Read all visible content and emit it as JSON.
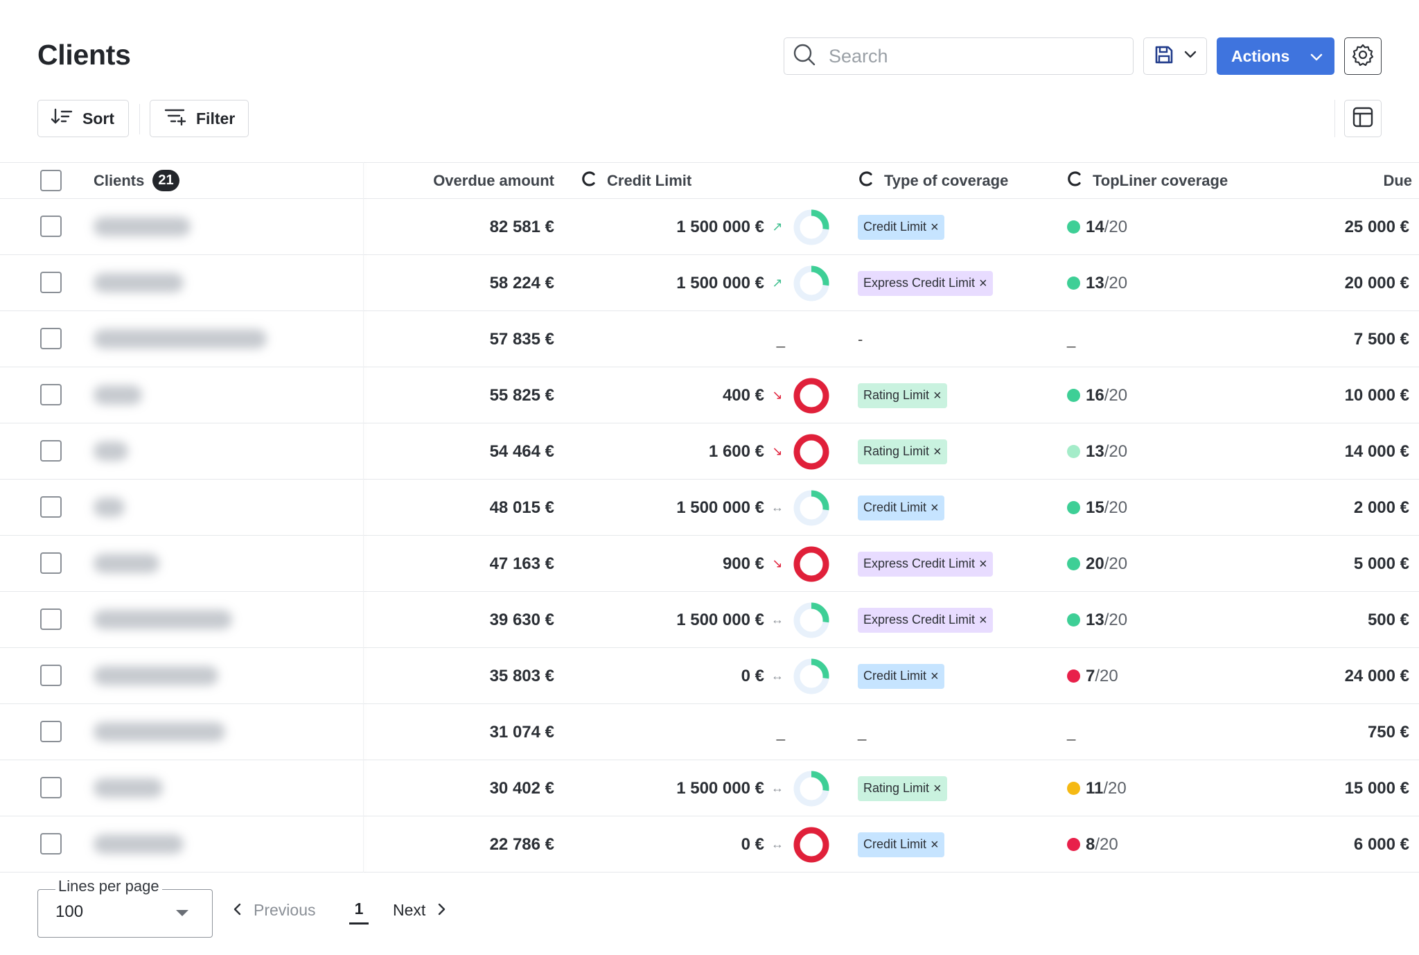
{
  "header": {
    "title": "Clients",
    "search_placeholder": "Search",
    "actions_label": "Actions"
  },
  "toolbar": {
    "sort_label": "Sort",
    "filter_label": "Filter"
  },
  "table": {
    "columns": {
      "clients": "Clients",
      "clients_count": "21",
      "overdue": "Overdue amount",
      "credit_limit": "Credit Limit",
      "type": "Type of coverage",
      "topliner": "TopLiner coverage",
      "due": "Due"
    },
    "rows": [
      {
        "overdue": "82 581 €",
        "credit": "1 500 000 €",
        "trend": "up",
        "ratio": 0.27,
        "type": "Credit Limit",
        "type_kind": "credit-limit",
        "score": "14",
        "score_color": "#3ecf96",
        "due": "25 000 €"
      },
      {
        "overdue": "58 224 €",
        "credit": "1 500 000 €",
        "trend": "up",
        "ratio": 0.27,
        "type": "Express Credit Limit",
        "type_kind": "express",
        "score": "13",
        "score_color": "#3ecf96",
        "due": "20 000 €"
      },
      {
        "overdue": "57 835 €",
        "credit": "_",
        "trend": "",
        "ratio": null,
        "type": "-",
        "type_kind": "",
        "score": "",
        "score_color": "",
        "due": "7 500 €"
      },
      {
        "overdue": "55 825 €",
        "credit": "400 €",
        "trend": "down",
        "ratio": 1,
        "type": "Rating Limit",
        "type_kind": "rating",
        "score": "16",
        "score_color": "#3ecf96",
        "due": "10 000 €"
      },
      {
        "overdue": "54 464 €",
        "credit": "1 600 €",
        "trend": "down",
        "ratio": 1,
        "type": "Rating Limit",
        "type_kind": "rating",
        "score": "13",
        "score_color": "#a4ecc9",
        "due": "14 000 €"
      },
      {
        "overdue": "48 015 €",
        "credit": "1 500 000 €",
        "trend": "flat",
        "ratio": 0.27,
        "type": "Credit Limit",
        "type_kind": "credit-limit",
        "score": "15",
        "score_color": "#3ecf96",
        "due": "2 000 €"
      },
      {
        "overdue": "47 163 €",
        "credit": "900 €",
        "trend": "down",
        "ratio": 1,
        "type": "Express Credit Limit",
        "type_kind": "express",
        "score": "20",
        "score_color": "#3ecf96",
        "due": "5 000 €"
      },
      {
        "overdue": "39 630 €",
        "credit": "1 500 000 €",
        "trend": "flat",
        "ratio": 0.27,
        "type": "Express Credit Limit",
        "type_kind": "express",
        "score": "13",
        "score_color": "#3ecf96",
        "due": "500 €"
      },
      {
        "overdue": "35 803 €",
        "credit": "0 €",
        "trend": "flat",
        "ratio": 0.27,
        "type": "Credit Limit",
        "type_kind": "credit-limit",
        "score": "7",
        "score_color": "#e8204a",
        "due": "24 000 €"
      },
      {
        "overdue": "31 074 €",
        "credit": "_",
        "trend": "",
        "ratio": null,
        "type": "_",
        "type_kind": "",
        "score": "",
        "score_color": "",
        "due": "750 €"
      },
      {
        "overdue": "30 402 €",
        "credit": "1 500 000 €",
        "trend": "flat",
        "ratio": 0.27,
        "type": "Rating Limit",
        "type_kind": "rating",
        "score": "11",
        "score_color": "#f5b914",
        "due": "15 000 €"
      },
      {
        "overdue": "22 786 €",
        "credit": "0 €",
        "trend": "flat",
        "ratio": 1,
        "type": "Credit Limit",
        "type_kind": "credit-limit",
        "score": "8",
        "score_color": "#e8204a",
        "due": "6 000 €"
      }
    ],
    "score_denominator": "/20",
    "empty_score": "_"
  },
  "footer": {
    "lines_label": "Lines per page",
    "lines_value": "100",
    "previous_label": "Previous",
    "page": "1",
    "next_label": "Next"
  },
  "icons": {
    "trend_up": "↗",
    "trend_down": "↘",
    "trend_flat": "↔",
    "tag_remove": "×"
  },
  "colors": {
    "accent": "#3f74de",
    "donut_good": "#3ecf96",
    "donut_bad": "#e0203a",
    "donut_track": "#e8f1fb"
  }
}
